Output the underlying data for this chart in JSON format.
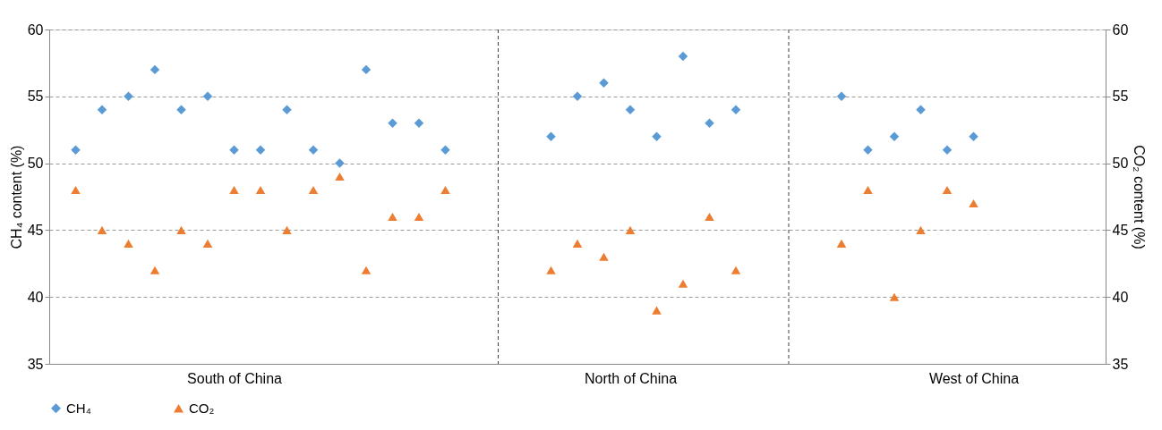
{
  "chart_data": {
    "type": "scatter",
    "ylabel": "CH₄ content (%)",
    "y2label": "CO₂ content (%)",
    "categories": [
      null,
      null,
      null,
      null,
      null,
      null,
      "South of China",
      null,
      null,
      null,
      null,
      null,
      null,
      null,
      null,
      null,
      null,
      null,
      null,
      null,
      null,
      "North of China",
      null,
      null,
      null,
      null,
      null,
      null,
      null,
      null,
      null,
      null,
      null,
      null,
      "West of China",
      null,
      null,
      null,
      null
    ],
    "ylim": [
      35,
      60
    ],
    "yticks": [
      35,
      40,
      45,
      50,
      55,
      60
    ],
    "y2lim": [
      35,
      60
    ],
    "y2ticks": [
      35,
      40,
      45,
      50,
      55,
      60
    ],
    "grid": true,
    "legend": "bottom",
    "series": [
      {
        "name": "CH₄",
        "color": "#5b9bd5",
        "marker": "diamond",
        "values": [
          51,
          54,
          55,
          57,
          54,
          55,
          51,
          51,
          54,
          51,
          50,
          57,
          53,
          53,
          51,
          null,
          null,
          null,
          52,
          55,
          56,
          54,
          52,
          58,
          53,
          54,
          null,
          null,
          null,
          55,
          51,
          52,
          54,
          51,
          52,
          null,
          null,
          null,
          null
        ]
      },
      {
        "name": "CO₂",
        "color": "#ed7d31",
        "marker": "triangle",
        "axis": "y2",
        "values": [
          48,
          45,
          44,
          42,
          45,
          44,
          48,
          48,
          45,
          48,
          49,
          42,
          46,
          46,
          48,
          null,
          null,
          null,
          42,
          44,
          43,
          45,
          39,
          41,
          46,
          42,
          null,
          null,
          null,
          44,
          48,
          40,
          45,
          48,
          47,
          null,
          null,
          null,
          null
        ]
      }
    ]
  }
}
